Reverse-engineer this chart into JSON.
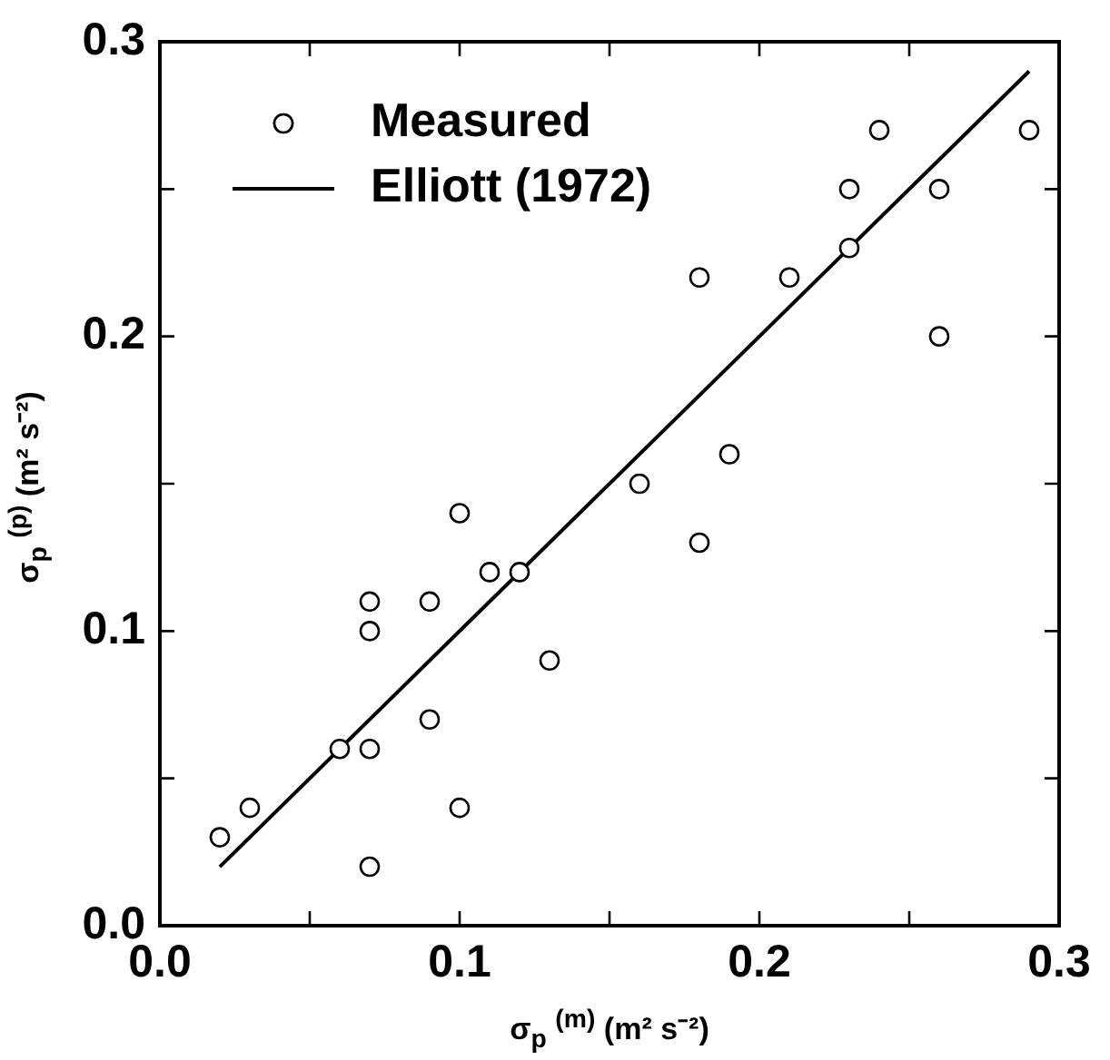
{
  "chart_data": {
    "type": "scatter",
    "xlabel": "σ$_{p}$ $^{(m)}$  (m² s⁻²)",
    "ylabel": "σ$_{p}$ $^{(p)}$  (m² s⁻²)",
    "xlim": [
      0,
      0.3
    ],
    "ylim": [
      0,
      0.3
    ],
    "xticks": [
      {
        "value": 0,
        "label": "0.0"
      },
      {
        "value": 0.05,
        "label": null
      },
      {
        "value": 0.1,
        "label": "0.1"
      },
      {
        "value": 0.15,
        "label": null
      },
      {
        "value": 0.2,
        "label": "0.2"
      },
      {
        "value": 0.25,
        "label": null
      },
      {
        "value": 0.3,
        "label": "0.3"
      }
    ],
    "yticks": [
      {
        "value": 0,
        "label": "0.0"
      },
      {
        "value": 0.05,
        "label": null
      },
      {
        "value": 0.1,
        "label": "0.1"
      },
      {
        "value": 0.15,
        "label": null
      },
      {
        "value": 0.2,
        "label": "0.2"
      },
      {
        "value": 0.25,
        "label": null
      },
      {
        "value": 0.3,
        "label": "0.3"
      }
    ],
    "legend": "top left",
    "series": [
      {
        "name": "Measured",
        "type": "scatter",
        "marker": "circle",
        "color": "#000000",
        "x": [
          0.02,
          0.03,
          0.06,
          0.07,
          0.07,
          0.07,
          0.07,
          0.09,
          0.09,
          0.1,
          0.1,
          0.11,
          0.12,
          0.13,
          0.16,
          0.18,
          0.18,
          0.19,
          0.21,
          0.23,
          0.23,
          0.24,
          0.26,
          0.26,
          0.29
        ],
        "values": [
          0.03,
          0.04,
          0.06,
          0.06,
          0.02,
          0.1,
          0.11,
          0.11,
          0.07,
          0.04,
          0.14,
          0.12,
          0.12,
          0.09,
          0.15,
          0.13,
          0.22,
          0.16,
          0.22,
          0.23,
          0.25,
          0.27,
          0.25,
          0.2,
          0.27
        ]
      },
      {
        "name": "Elliott (1972)",
        "type": "line",
        "marker": "none",
        "color": "#000000",
        "x": [
          0.02,
          0.29
        ],
        "values": [
          0.02,
          0.29
        ]
      }
    ]
  }
}
